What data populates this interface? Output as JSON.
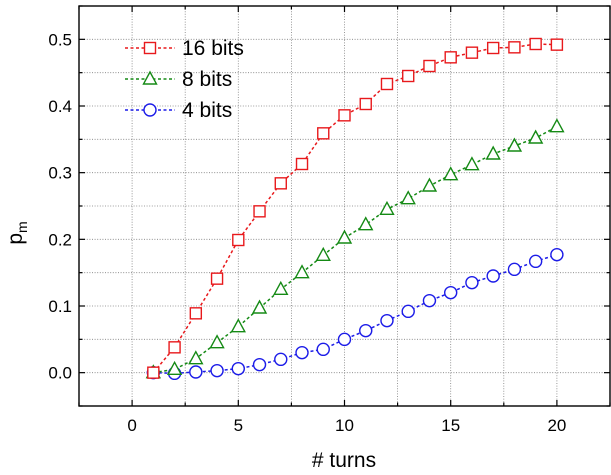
{
  "chart_data": {
    "type": "line",
    "xlabel": "# turns",
    "ylabel": "p",
    "ylabel_subscript": "m",
    "xlim": [
      -2.5,
      22.5
    ],
    "ylim": [
      -0.05,
      0.55
    ],
    "xticks": [
      0,
      5,
      10,
      15,
      20
    ],
    "yticks": [
      0.0,
      0.1,
      0.2,
      0.3,
      0.4,
      0.5
    ],
    "xtick_labels": [
      "0",
      "5",
      "10",
      "15",
      "20"
    ],
    "ytick_labels": [
      "0.0",
      "0.1",
      "0.2",
      "0.3",
      "0.4",
      "0.5"
    ],
    "grid": true,
    "legend_position": "top-left",
    "x": [
      1,
      2,
      3,
      4,
      5,
      6,
      7,
      8,
      9,
      10,
      11,
      12,
      13,
      14,
      15,
      16,
      17,
      18,
      19,
      20
    ],
    "series": [
      {
        "name": "16 bits",
        "color": "#e8191c",
        "marker": "square",
        "values": [
          0.0,
          0.038,
          0.089,
          0.141,
          0.199,
          0.242,
          0.284,
          0.313,
          0.359,
          0.386,
          0.403,
          0.433,
          0.445,
          0.46,
          0.473,
          0.48,
          0.487,
          0.488,
          0.493,
          0.492
        ]
      },
      {
        "name": "8 bits",
        "color": "#158a15",
        "marker": "triangle",
        "values": [
          0.0,
          0.005,
          0.021,
          0.045,
          0.069,
          0.097,
          0.125,
          0.15,
          0.176,
          0.202,
          0.222,
          0.245,
          0.261,
          0.28,
          0.297,
          0.312,
          0.328,
          0.34,
          0.352,
          0.369
        ]
      },
      {
        "name": "4 bits",
        "color": "#1c1ce8",
        "marker": "circle",
        "values": [
          0.0,
          -0.001,
          0.001,
          0.003,
          0.006,
          0.012,
          0.02,
          0.03,
          0.035,
          0.05,
          0.063,
          0.078,
          0.092,
          0.108,
          0.12,
          0.135,
          0.145,
          0.155,
          0.167,
          0.177
        ]
      }
    ]
  }
}
